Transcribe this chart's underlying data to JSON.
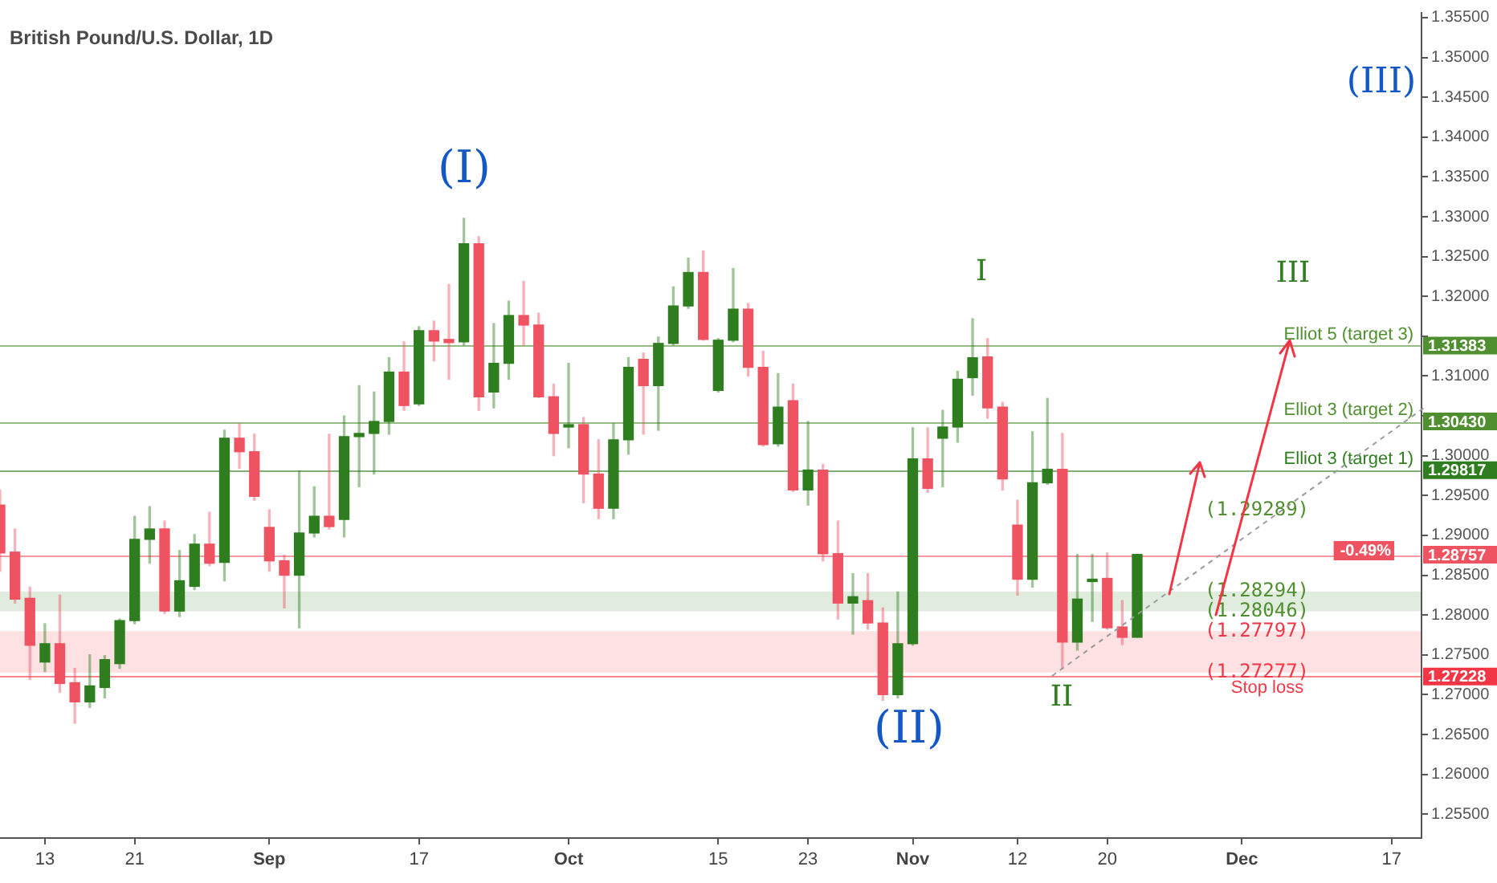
{
  "chart_data": {
    "type": "candlestick",
    "title": "British Pound/U.S. Dollar, 1D",
    "categories": [
      null,
      null,
      null,
      "13",
      null,
      null,
      null,
      null,
      null,
      "21",
      null,
      null,
      null,
      null,
      null,
      null,
      null,
      null,
      "Sep",
      null,
      null,
      null,
      null,
      null,
      null,
      null,
      null,
      null,
      "17",
      null,
      null,
      null,
      null,
      null,
      null,
      null,
      null,
      null,
      "Oct",
      null,
      null,
      null,
      null,
      null,
      null,
      null,
      null,
      null,
      "15",
      null,
      null,
      null,
      null,
      null,
      "23",
      null,
      null,
      null,
      null,
      null,
      null,
      "Nov",
      null,
      null,
      null,
      null,
      null,
      null,
      "12",
      null,
      null,
      null,
      null,
      null,
      "20",
      null,
      null,
      null,
      null,
      null,
      null,
      null,
      null,
      "Dec",
      null,
      null,
      null,
      null,
      null,
      null,
      null,
      null,
      null,
      "17",
      null,
      null
    ],
    "ohlc": [
      [
        1.2938,
        1.2957,
        1.2855,
        1.2878
      ],
      [
        1.2879,
        1.2908,
        1.2815,
        1.282
      ],
      [
        1.2821,
        1.2835,
        1.2719,
        1.2762
      ],
      [
        1.2741,
        1.2789,
        1.2729,
        1.2764
      ],
      [
        1.2764,
        1.2825,
        1.2703,
        1.2714
      ],
      [
        1.2715,
        1.2733,
        1.2664,
        1.2691
      ],
      [
        1.2691,
        1.275,
        1.2684,
        1.2711
      ],
      [
        1.2709,
        1.2749,
        1.2696,
        1.2744
      ],
      [
        1.2739,
        1.2795,
        1.2733,
        1.2793
      ],
      [
        1.2793,
        1.2924,
        1.2789,
        1.2895
      ],
      [
        1.2895,
        1.2936,
        1.2865,
        1.2908
      ],
      [
        1.2908,
        1.2918,
        1.2802,
        1.2805
      ],
      [
        1.2805,
        1.2881,
        1.2798,
        1.2843
      ],
      [
        1.2836,
        1.2901,
        1.2832,
        1.2889
      ],
      [
        1.2889,
        1.2929,
        1.2862,
        1.2865
      ],
      [
        1.2866,
        1.3032,
        1.2843,
        1.3022
      ],
      [
        1.3022,
        1.304,
        1.2984,
        1.3005
      ],
      [
        1.3005,
        1.3027,
        1.2944,
        1.2949
      ],
      [
        1.291,
        1.2932,
        1.2855,
        1.2868
      ],
      [
        1.2868,
        1.2875,
        1.2809,
        1.285
      ],
      [
        1.285,
        1.2981,
        1.2784,
        1.2903
      ],
      [
        1.2903,
        1.2961,
        1.2898,
        1.2924
      ],
      [
        1.2924,
        1.3027,
        1.2908,
        1.2911
      ],
      [
        1.292,
        1.305,
        1.2898,
        1.3024
      ],
      [
        1.3024,
        1.3088,
        1.2961,
        1.3028
      ],
      [
        1.3028,
        1.308,
        1.2977,
        1.3043
      ],
      [
        1.3043,
        1.3123,
        1.3027,
        1.3105
      ],
      [
        1.3105,
        1.3143,
        1.3057,
        1.3063
      ],
      [
        1.3065,
        1.3162,
        1.3063,
        1.3157
      ],
      [
        1.3157,
        1.3169,
        1.3119,
        1.3144
      ],
      [
        1.3146,
        1.3215,
        1.3096,
        1.3142
      ],
      [
        1.3143,
        1.3298,
        1.3139,
        1.3266
      ],
      [
        1.3266,
        1.3275,
        1.3057,
        1.3074
      ],
      [
        1.308,
        1.3166,
        1.306,
        1.3116
      ],
      [
        1.3116,
        1.3194,
        1.3096,
        1.3176
      ],
      [
        1.3176,
        1.3219,
        1.3139,
        1.3164
      ],
      [
        1.3164,
        1.3179,
        1.3073,
        1.3074
      ],
      [
        1.3074,
        1.309,
        1.3,
        1.3028
      ],
      [
        1.3036,
        1.3116,
        1.301,
        1.3039
      ],
      [
        1.3039,
        1.3048,
        1.2941,
        1.2977
      ],
      [
        1.2977,
        1.302,
        1.2921,
        1.2934
      ],
      [
        1.2934,
        1.304,
        1.2921,
        1.302
      ],
      [
        1.302,
        1.3123,
        1.3002,
        1.3111
      ],
      [
        1.3121,
        1.3129,
        1.3027,
        1.3088
      ],
      [
        1.3088,
        1.3149,
        1.3032,
        1.3141
      ],
      [
        1.3141,
        1.3212,
        1.3139,
        1.3188
      ],
      [
        1.3188,
        1.3248,
        1.3185,
        1.323
      ],
      [
        1.323,
        1.3257,
        1.3145,
        1.3146
      ],
      [
        1.3082,
        1.3147,
        1.308,
        1.3145
      ],
      [
        1.3145,
        1.3235,
        1.3143,
        1.3184
      ],
      [
        1.3184,
        1.3191,
        1.31,
        1.3111
      ],
      [
        1.3111,
        1.3131,
        1.3012,
        1.3014
      ],
      [
        1.3015,
        1.3103,
        1.3012,
        1.3061
      ],
      [
        1.3069,
        1.309,
        1.2955,
        1.2957
      ],
      [
        1.2957,
        1.3043,
        1.2938,
        1.2982
      ],
      [
        1.2982,
        1.2989,
        1.2868,
        1.2877
      ],
      [
        1.2877,
        1.2918,
        1.2795,
        1.2815
      ],
      [
        1.2815,
        1.2852,
        1.2776,
        1.2823
      ],
      [
        1.2818,
        1.2852,
        1.2782,
        1.279
      ],
      [
        1.279,
        1.2809,
        1.2693,
        1.27
      ],
      [
        1.27,
        1.2829,
        1.2696,
        1.2764
      ],
      [
        1.2764,
        1.3035,
        1.2762,
        1.2996
      ],
      [
        1.2996,
        1.3035,
        1.2954,
        1.2959
      ],
      [
        1.3022,
        1.3057,
        1.2961,
        1.3036
      ],
      [
        1.3036,
        1.3106,
        1.3017,
        1.3096
      ],
      [
        1.3098,
        1.3172,
        1.3076,
        1.3123
      ],
      [
        1.3124,
        1.3147,
        1.3047,
        1.306
      ],
      [
        1.3061,
        1.3067,
        1.2957,
        1.2971
      ],
      [
        1.2913,
        1.2944,
        1.2825,
        1.2845
      ],
      [
        1.2845,
        1.303,
        1.2835,
        1.2966
      ],
      [
        1.2966,
        1.3072,
        1.2964,
        1.2983
      ],
      [
        1.2983,
        1.3028,
        1.2733,
        1.2766
      ],
      [
        1.2766,
        1.2876,
        1.2756,
        1.282
      ],
      [
        1.2842,
        1.2876,
        1.2792,
        1.2845
      ],
      [
        1.2846,
        1.2878,
        1.2782,
        1.2784
      ],
      [
        1.2785,
        1.2818,
        1.2763,
        1.2772
      ],
      [
        1.2772,
        1.2876,
        1.2772,
        1.2876
      ],
      null,
      null,
      null,
      null,
      null,
      null,
      null,
      null,
      null,
      null,
      null,
      null,
      null,
      null,
      null,
      null,
      null,
      null,
      null
    ],
    "colors": [
      "#ef5361",
      "#ef5361",
      "#ef5361",
      "#2e7d1e",
      "#ef5361",
      "#ef5361",
      "#2e7d1e",
      "#2e7d1e",
      "#2e7d1e",
      "#2e7d1e",
      "#2e7d1e",
      "#ef5361",
      "#2e7d1e",
      "#2e7d1e",
      "#ef5361",
      "#2e7d1e",
      "#ef5361",
      "#ef5361",
      "#ef5361",
      "#ef5361",
      "#2e7d1e",
      "#2e7d1e",
      "#ef5361",
      "#2e7d1e",
      "#2e7d1e",
      "#2e7d1e",
      "#2e7d1e",
      "#ef5361",
      "#2e7d1e",
      "#ef5361",
      "#ef5361",
      "#2e7d1e",
      "#ef5361",
      "#2e7d1e",
      "#2e7d1e",
      "#ef5361",
      "#ef5361",
      "#ef5361",
      "#2e7d1e",
      "#ef5361",
      "#ef5361",
      "#2e7d1e",
      "#2e7d1e",
      "#ef5361",
      "#2e7d1e",
      "#2e7d1e",
      "#2e7d1e",
      "#ef5361",
      "#2e7d1e",
      "#2e7d1e",
      "#ef5361",
      "#ef5361",
      "#2e7d1e",
      "#ef5361",
      "#2e7d1e",
      "#ef5361",
      "#ef5361",
      "#2e7d1e",
      "#ef5361",
      "#ef5361",
      "#2e7d1e",
      "#2e7d1e",
      "#ef5361",
      "#2e7d1e",
      "#2e7d1e",
      "#2e7d1e",
      "#ef5361",
      "#ef5361",
      "#ef5361",
      "#2e7d1e",
      "#2e7d1e",
      "#ef5361",
      "#2e7d1e",
      "#2e7d1e",
      "#ef5361",
      "#ef5361",
      "#2e7d1e",
      null,
      null,
      null,
      null,
      null,
      null,
      null,
      null,
      null,
      null,
      null,
      null,
      null,
      null,
      null,
      null,
      null,
      null,
      null
    ],
    "ylim": [
      1.252,
      1.3556
    ],
    "yticks": [
      {
        "value": 1.255,
        "label": "1.25500"
      },
      {
        "value": 1.26,
        "label": "1.26000"
      },
      {
        "value": 1.265,
        "label": "1.26500"
      },
      {
        "value": 1.27,
        "label": "1.27000"
      },
      {
        "value": 1.275,
        "label": "1.27500"
      },
      {
        "value": 1.28,
        "label": "1.28000"
      },
      {
        "value": 1.285,
        "label": "1.28500"
      },
      {
        "value": 1.29,
        "label": "1.29000"
      },
      {
        "value": 1.295,
        "label": "1.29500"
      },
      {
        "value": 1.3,
        "label": "1.30000"
      },
      {
        "value": 1.305,
        "label": null
      },
      {
        "value": 1.31,
        "label": "1.31000"
      },
      {
        "value": 1.315,
        "label": null
      },
      {
        "value": 1.32,
        "label": "1.32000"
      },
      {
        "value": 1.325,
        "label": "1.32500"
      },
      {
        "value": 1.33,
        "label": "1.33000"
      },
      {
        "value": 1.335,
        "label": "1.33500"
      },
      {
        "value": 1.34,
        "label": "1.34000"
      },
      {
        "value": 1.345,
        "label": "1.34500"
      },
      {
        "value": 1.35,
        "label": "1.35000"
      },
      {
        "value": 1.355,
        "label": "1.35500"
      }
    ],
    "ref_lines": [
      {
        "axis": "y",
        "value": 1.31383,
        "label": "1.31383",
        "color": "#4f8f2f"
      },
      {
        "axis": "y",
        "value": 1.3043,
        "label": "1.30430",
        "color": "#4f8f2f"
      },
      {
        "axis": "y",
        "value": 1.29817,
        "label": "1.29817",
        "color": "#2e7d1e"
      },
      {
        "axis": "y",
        "value": 1.28757,
        "label": "1.28757",
        "color": "#ef5361"
      },
      {
        "axis": "y",
        "value": 1.27228,
        "label": "1.27228",
        "color": "#f23645"
      }
    ],
    "bands": [
      {
        "axis": "y",
        "from": 1.28046,
        "to": 1.28294,
        "color": "#2e7d1e"
      },
      {
        "axis": "y",
        "from": 1.27277,
        "to": 1.27797,
        "color": "#f23645"
      }
    ],
    "annotations": [
      "(I)",
      "(II)",
      "(III)",
      "I",
      "II",
      "III",
      {
        "text": "Elliot 5 (target 3)",
        "y": 1.31383
      },
      {
        "text": "Elliot 3 (target 2)",
        "y": 1.3043
      },
      {
        "text": "Elliot 3 (target 1)",
        "y": 1.29817
      },
      "(1.29289)",
      {
        "text": "(1.28294)",
        "y": 1.28294
      },
      {
        "text": "(1.28046)",
        "y": 1.28046
      },
      {
        "text": "(1.27797)",
        "y": 1.27797
      },
      {
        "text": "(1.27277)",
        "y": 1.27277
      },
      {
        "text": "Stop loss",
        "y": 1.27228
      },
      "-0.49%"
    ]
  }
}
